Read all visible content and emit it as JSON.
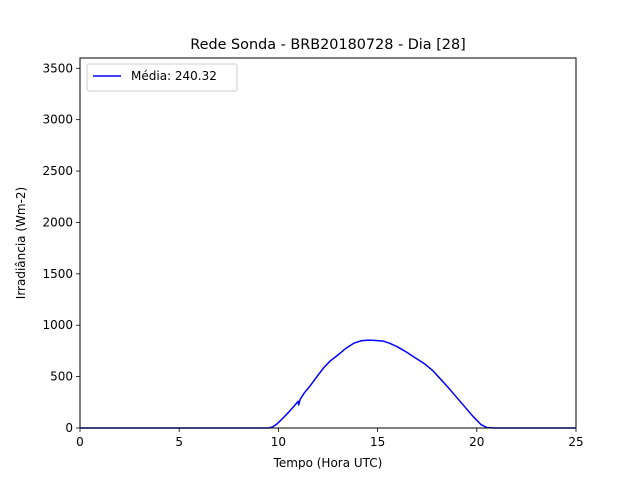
{
  "chart_data": {
    "type": "line",
    "title": "Rede Sonda - BRB20180728 - Dia [28]",
    "xlabel": "Tempo (Hora UTC)",
    "ylabel": "Irradiância (Wm-2)",
    "xlim": [
      0,
      25
    ],
    "ylim": [
      0,
      3600
    ],
    "xticks": [
      0,
      5,
      10,
      15,
      20,
      25
    ],
    "xtick_labels": [
      "0",
      "5",
      "10",
      "15",
      "20",
      "25"
    ],
    "yticks": [
      0,
      500,
      1000,
      1500,
      2000,
      2500,
      3000,
      3500
    ],
    "ytick_labels": [
      "0",
      "500",
      "1000",
      "1500",
      "2000",
      "2500",
      "3000",
      "3500"
    ],
    "grid": false,
    "legend_position": "upper left",
    "series": [
      {
        "name": "Média: 240.32",
        "color": "#0000ff",
        "x": [
          0,
          9.5,
          9.7,
          9.9,
          10.2,
          10.5,
          10.8,
          11.0,
          11.02,
          11.1,
          11.3,
          11.6,
          12.0,
          12.3,
          12.6,
          13.0,
          13.4,
          13.8,
          14.2,
          14.6,
          15.0,
          15.3,
          15.6,
          16.0,
          16.4,
          16.8,
          17.0,
          17.4,
          17.8,
          18.2,
          18.6,
          19.0,
          19.4,
          19.8,
          20.2,
          20.5,
          20.7,
          20.85,
          21.0,
          21.1,
          25
        ],
        "y": [
          0,
          0,
          10,
          35,
          90,
          150,
          215,
          260,
          225,
          280,
          340,
          410,
          515,
          590,
          650,
          710,
          775,
          825,
          850,
          855,
          850,
          845,
          825,
          790,
          745,
          695,
          670,
          620,
          555,
          470,
          385,
          295,
          205,
          115,
          35,
          5,
          2,
          0,
          0,
          0,
          0
        ]
      }
    ]
  }
}
